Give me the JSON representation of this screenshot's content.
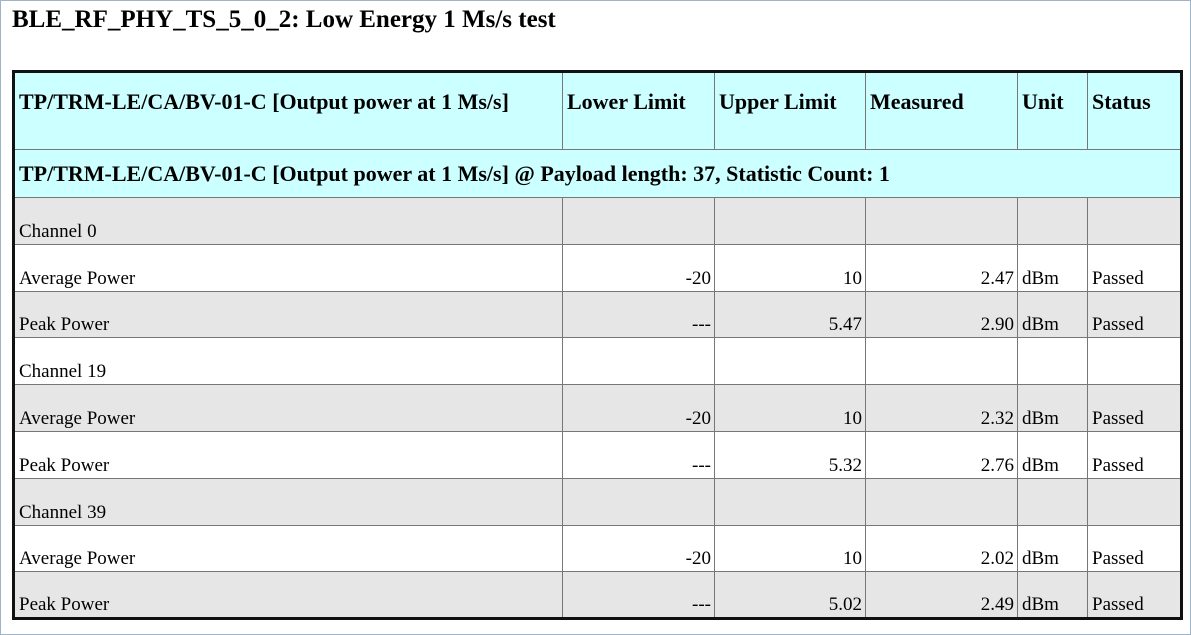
{
  "title": "BLE_RF_PHY_TS_5_0_2: Low Energy 1 Ms/s test",
  "table": {
    "header": [
      "TP/TRM-LE/CA/BV-01-C [Output power at 1 Ms/s]",
      "Lower Limit",
      "Upper Limit",
      "Measured",
      "Unit",
      "Status"
    ],
    "section": "TP/TRM-LE/CA/BV-01-C [Output power at 1 Ms/s] @ Payload length: 37, Statistic Count: 1",
    "rows": [
      [
        "Channel 0"
      ],
      [
        "Average Power",
        "-20",
        "10",
        "2.47",
        "dBm",
        "Passed"
      ],
      [
        "Peak Power",
        "---",
        "5.47",
        "2.90",
        "dBm",
        "Passed"
      ],
      [
        "Channel 19"
      ],
      [
        "Average Power",
        "-20",
        "10",
        "2.32",
        "dBm",
        "Passed"
      ],
      [
        "Peak Power",
        "---",
        "5.32",
        "2.76",
        "dBm",
        "Passed"
      ],
      [
        "Channel 39"
      ],
      [
        "Average Power",
        "-20",
        "10",
        "2.02",
        "dBm",
        "Passed"
      ],
      [
        "Peak Power",
        "---",
        "5.02",
        "2.49",
        "dBm",
        "Passed"
      ]
    ]
  }
}
